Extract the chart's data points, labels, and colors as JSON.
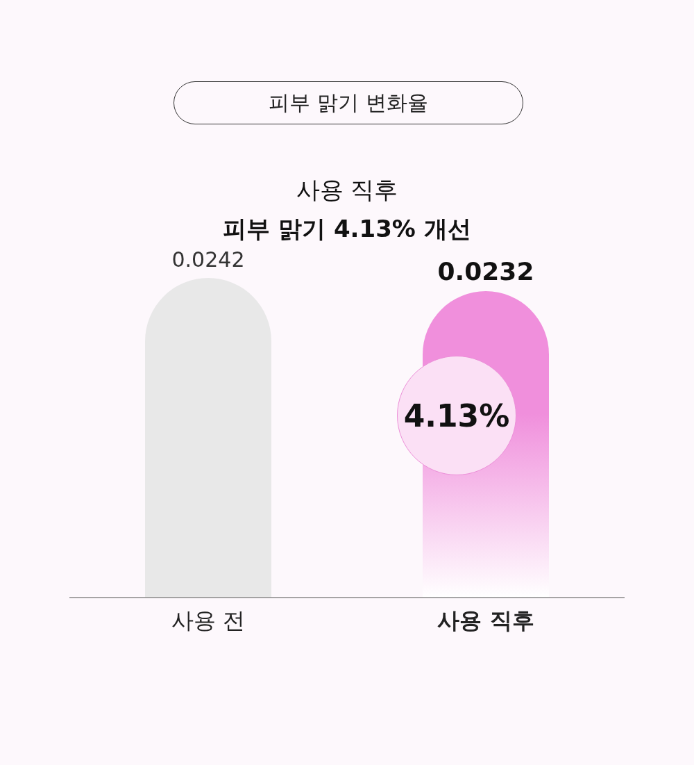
{
  "chart_data": {
    "type": "bar",
    "title": "피부 맑기 변화율",
    "subtitle": "사용 직후\n피부 맑기 4.13% 개선",
    "categories": [
      "사용 전",
      "사용 직후"
    ],
    "values": [
      0.0242,
      0.0232
    ],
    "colors": [
      "#e8e8e8",
      "#f08fdc"
    ],
    "data_labels": true,
    "annotations": [
      "4.13%"
    ]
  }
}
